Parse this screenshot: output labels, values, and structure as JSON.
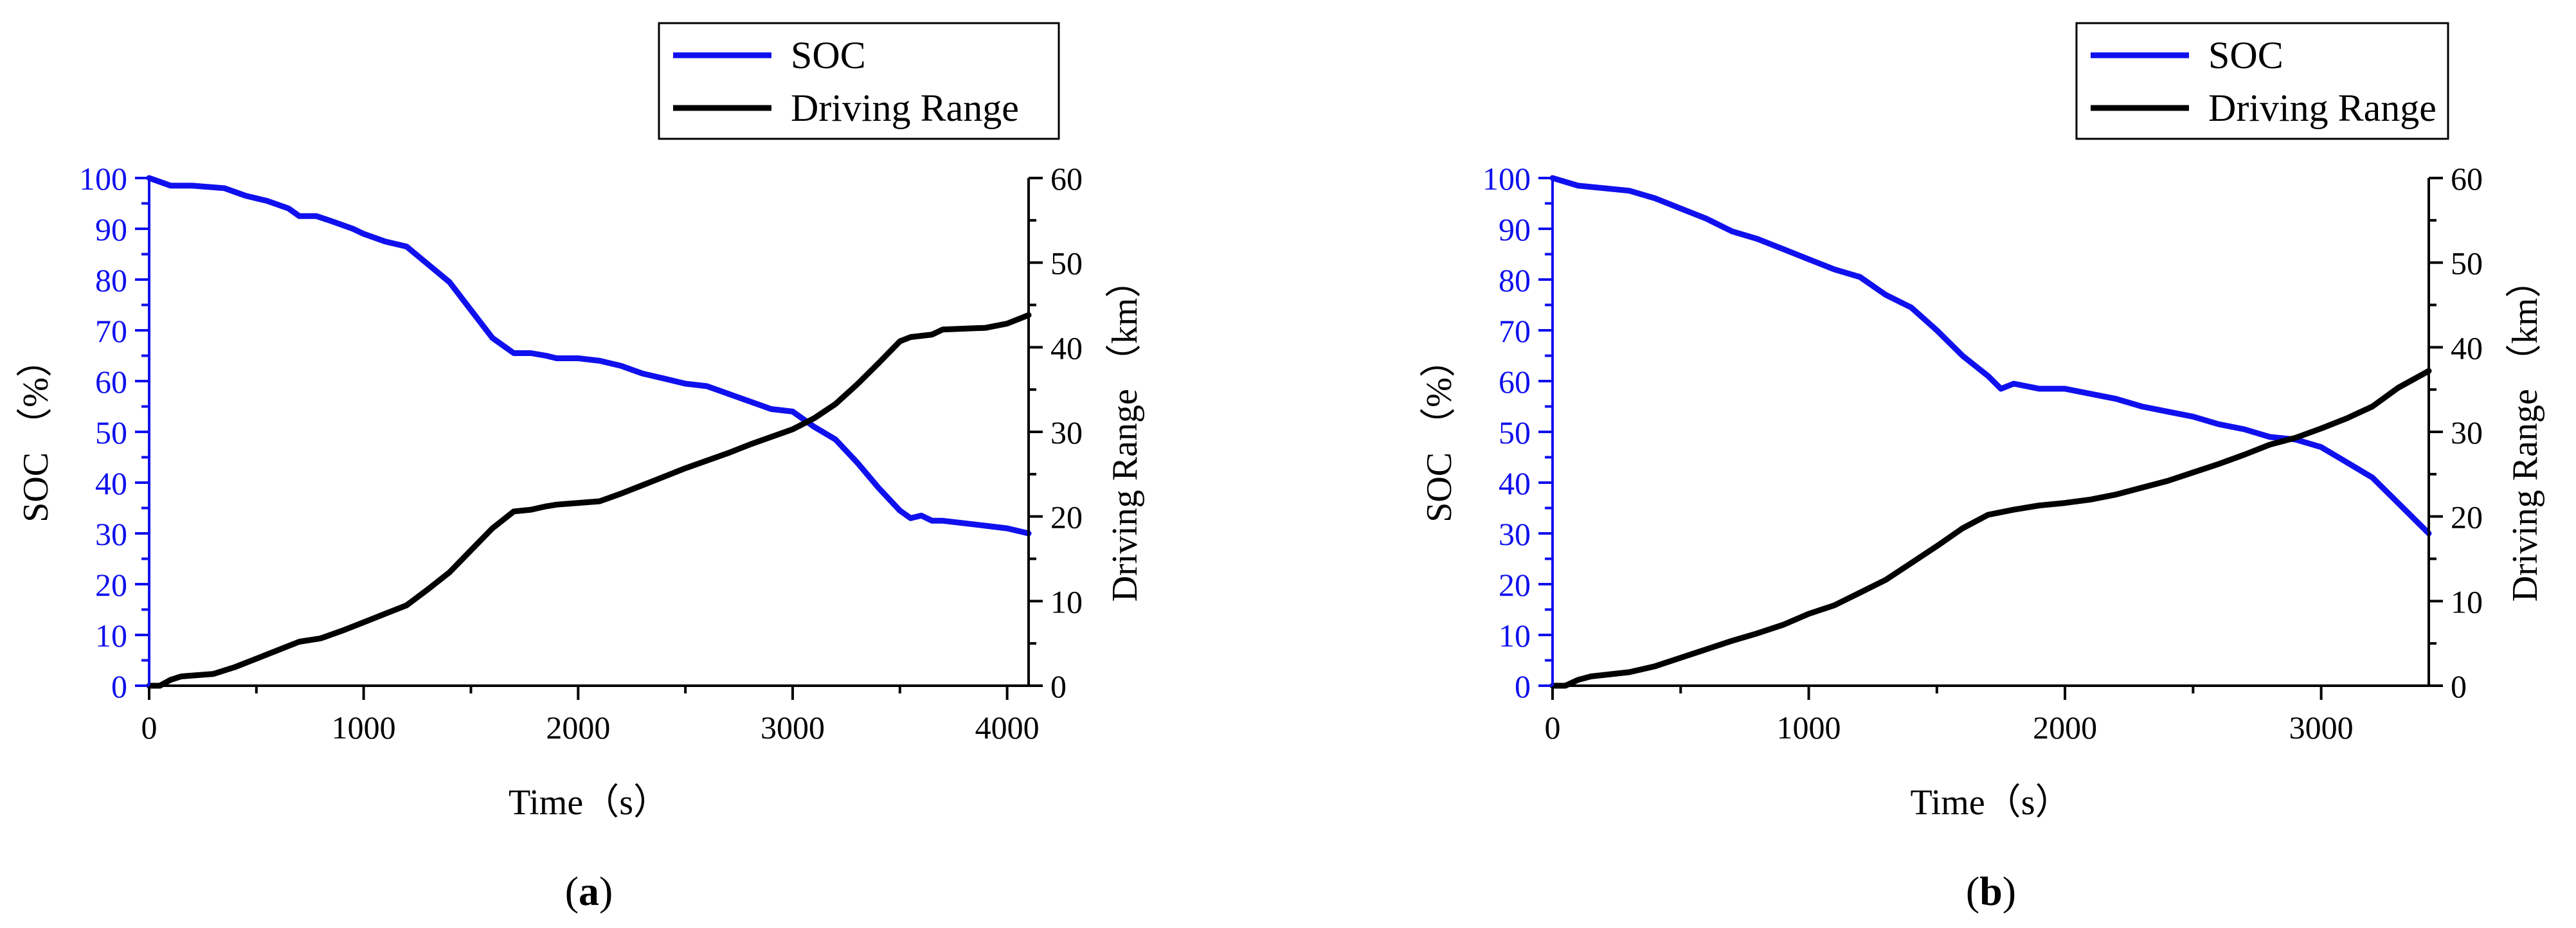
{
  "colors": {
    "soc": "#1010ee",
    "range": "#000000",
    "axis": "#000000",
    "soc_axis": "#1010ee"
  },
  "chart_data": [
    {
      "type": "line",
      "caption_open": "(",
      "caption_letter": "a",
      "caption_close": ")",
      "xlabel": "Time（s）",
      "ylabel_left": "SOC （%）",
      "ylabel_right": "Driving Range （km）",
      "xlim": [
        0,
        4100
      ],
      "ylim_left": [
        0,
        100
      ],
      "ylim_right": [
        0,
        60
      ],
      "xticks": [
        0,
        1000,
        2000,
        3000,
        4000
      ],
      "yticks_left": [
        0,
        10,
        20,
        30,
        40,
        50,
        60,
        70,
        80,
        90,
        100
      ],
      "yticks_right": [
        0,
        10,
        20,
        30,
        40,
        50,
        60
      ],
      "legend": [
        "SOC",
        "Driving Range"
      ],
      "series": [
        {
          "name": "SOC",
          "axis": "left",
          "x": [
            0,
            100,
            200,
            350,
            450,
            550,
            650,
            700,
            780,
            850,
            950,
            1000,
            1100,
            1200,
            1300,
            1400,
            1500,
            1600,
            1700,
            1780,
            1850,
            1900,
            2000,
            2100,
            2200,
            2300,
            2400,
            2500,
            2600,
            2700,
            2800,
            2900,
            3000,
            3100,
            3200,
            3300,
            3400,
            3500,
            3550,
            3600,
            3650,
            3700,
            3800,
            3900,
            4000,
            4100
          ],
          "values": [
            100,
            98.5,
            98.5,
            98,
            96.5,
            95.5,
            94,
            92.5,
            92.5,
            91.5,
            90,
            89,
            87.5,
            86.5,
            83,
            79.5,
            74,
            68.5,
            65.5,
            65.5,
            65,
            64.5,
            64.5,
            64,
            63,
            61.5,
            60.5,
            59.5,
            59,
            57.5,
            56,
            54.5,
            54,
            51,
            48.5,
            44,
            39,
            34.5,
            33,
            33.5,
            32.5,
            32.5,
            32,
            31.5,
            31,
            30
          ]
        },
        {
          "name": "Driving Range",
          "axis": "right",
          "x": [
            0,
            50,
            100,
            150,
            300,
            400,
            500,
            600,
            700,
            800,
            900,
            1000,
            1100,
            1200,
            1300,
            1400,
            1500,
            1600,
            1700,
            1780,
            1850,
            1900,
            2000,
            2100,
            2200,
            2300,
            2400,
            2500,
            2600,
            2700,
            2800,
            2900,
            3000,
            3100,
            3200,
            3300,
            3400,
            3500,
            3550,
            3650,
            3700,
            3800,
            3900,
            4000,
            4100
          ],
          "values": [
            0,
            0,
            0.7,
            1.1,
            1.4,
            2.2,
            3.2,
            4.2,
            5.2,
            5.6,
            6.5,
            7.5,
            8.5,
            9.5,
            11.4,
            13.4,
            16,
            18.6,
            20.6,
            20.8,
            21.2,
            21.4,
            21.6,
            21.8,
            22.7,
            23.7,
            24.7,
            25.7,
            26.6,
            27.5,
            28.5,
            29.4,
            30.3,
            31.6,
            33.3,
            35.6,
            38.1,
            40.7,
            41.2,
            41.5,
            42.1,
            42.2,
            42.3,
            42.8,
            43.8
          ]
        }
      ]
    },
    {
      "type": "line",
      "caption_open": "(",
      "caption_letter": "b",
      "caption_close": ")",
      "xlabel": "Time（s）",
      "ylabel_left": "SOC （%）",
      "ylabel_right": "Driving Range （km）",
      "xlim": [
        0,
        3420
      ],
      "ylim_left": [
        0,
        100
      ],
      "ylim_right": [
        0,
        60
      ],
      "xticks": [
        0,
        1000,
        2000,
        3000
      ],
      "yticks_left": [
        0,
        10,
        20,
        30,
        40,
        50,
        60,
        70,
        80,
        90,
        100
      ],
      "yticks_right": [
        0,
        10,
        20,
        30,
        40,
        50,
        60
      ],
      "legend": [
        "SOC",
        "Driving Range"
      ],
      "series": [
        {
          "name": "SOC",
          "axis": "left",
          "x": [
            0,
            100,
            200,
            300,
            400,
            500,
            600,
            700,
            800,
            900,
            1000,
            1100,
            1200,
            1300,
            1400,
            1500,
            1600,
            1700,
            1750,
            1800,
            1900,
            2000,
            2100,
            2200,
            2300,
            2400,
            2500,
            2600,
            2700,
            2800,
            2900,
            3000,
            3100,
            3200,
            3300,
            3420
          ],
          "values": [
            100,
            98.5,
            98,
            97.5,
            96,
            94,
            92,
            89.5,
            88,
            86,
            84,
            82,
            80.5,
            77,
            74.5,
            70,
            65,
            61,
            58.5,
            59.5,
            58.5,
            58.5,
            57.5,
            56.5,
            55,
            54,
            53,
            51.5,
            50.5,
            49,
            48.5,
            47,
            44,
            41,
            36,
            30
          ]
        },
        {
          "name": "Driving Range",
          "axis": "right",
          "x": [
            0,
            50,
            100,
            150,
            300,
            400,
            500,
            600,
            700,
            800,
            900,
            1000,
            1100,
            1200,
            1300,
            1400,
            1500,
            1600,
            1700,
            1750,
            1800,
            1900,
            2000,
            2100,
            2200,
            2300,
            2400,
            2500,
            2600,
            2700,
            2800,
            2900,
            3000,
            3100,
            3200,
            3300,
            3420
          ],
          "values": [
            0,
            0,
            0.7,
            1.1,
            1.6,
            2.3,
            3.3,
            4.3,
            5.3,
            6.2,
            7.2,
            8.5,
            9.5,
            11,
            12.5,
            14.5,
            16.5,
            18.6,
            20.2,
            20.5,
            20.8,
            21.3,
            21.6,
            22,
            22.6,
            23.4,
            24.2,
            25.2,
            26.2,
            27.3,
            28.5,
            29.3,
            30.4,
            31.6,
            33,
            35.2,
            37.2
          ]
        }
      ]
    }
  ]
}
